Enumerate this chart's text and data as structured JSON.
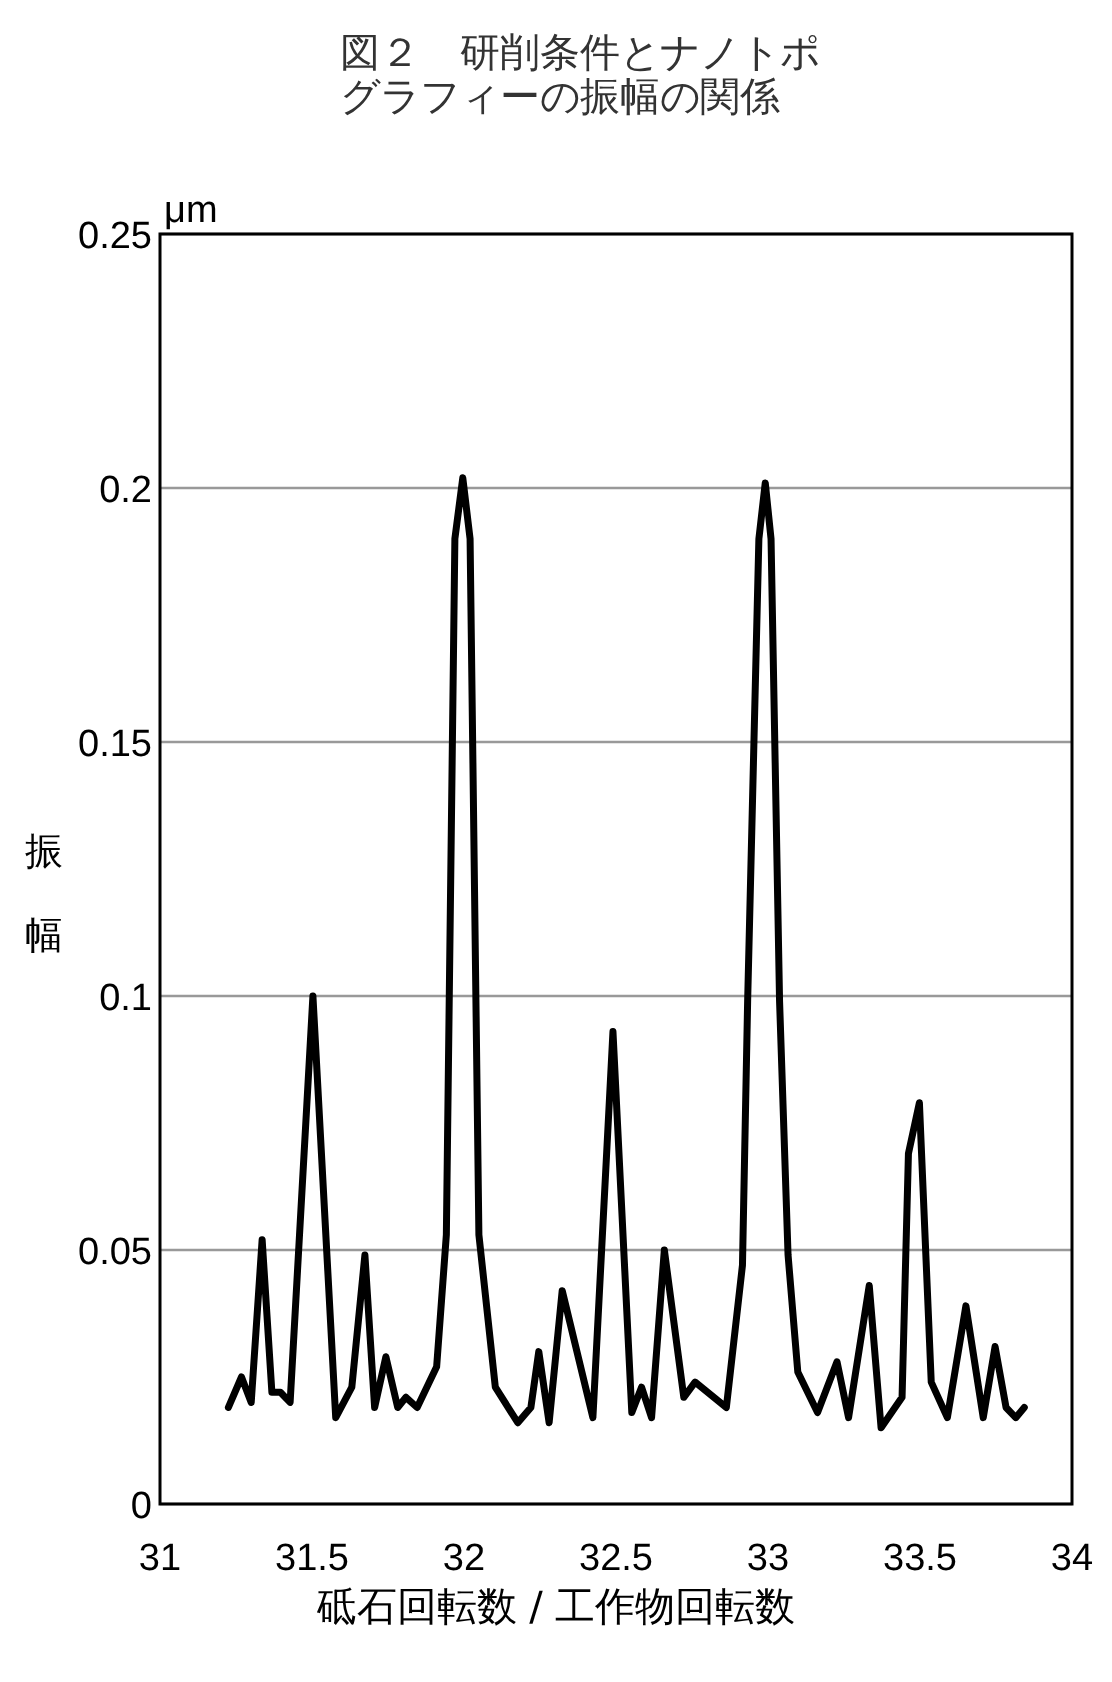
{
  "chart_data": {
    "type": "line",
    "title": "図２　研削条件とナノトポグラフィーの振幅の関係",
    "xlabel": "砥石回転数 / 工作物回転数",
    "ylabel": "振幅",
    "annotations": [
      "μm"
    ],
    "x": [
      31.225,
      31.268,
      31.3,
      31.336,
      31.368,
      31.396,
      31.428,
      31.503,
      31.578,
      31.631,
      31.674,
      31.706,
      31.743,
      31.782,
      31.809,
      31.846,
      31.91,
      31.942,
      31.97,
      31.996,
      32.02,
      32.049,
      32.103,
      32.177,
      32.22,
      32.246,
      32.28,
      32.323,
      32.424,
      32.49,
      32.552,
      32.584,
      32.617,
      32.659,
      32.723,
      32.76,
      32.863,
      32.916,
      32.933,
      32.97,
      32.991,
      33.01,
      33.038,
      33.066,
      33.098,
      33.163,
      33.227,
      33.265,
      33.333,
      33.372,
      33.441,
      33.462,
      33.498,
      33.537,
      33.59,
      33.651,
      33.708,
      33.747,
      33.783,
      33.815,
      33.843
    ],
    "series": [
      {
        "color": "#000000",
        "values": [
          0.019,
          0.025,
          0.02,
          0.052,
          0.022,
          0.022,
          0.02,
          0.1,
          0.017,
          0.023,
          0.049,
          0.019,
          0.029,
          0.019,
          0.021,
          0.019,
          0.027,
          0.053,
          0.19,
          0.202,
          0.19,
          0.053,
          0.023,
          0.016,
          0.019,
          0.03,
          0.016,
          0.042,
          0.017,
          0.093,
          0.018,
          0.023,
          0.017,
          0.05,
          0.021,
          0.024,
          0.019,
          0.047,
          0.099,
          0.19,
          0.201,
          0.19,
          0.099,
          0.049,
          0.026,
          0.018,
          0.028,
          0.017,
          0.043,
          0.015,
          0.021,
          0.069,
          0.079,
          0.024,
          0.017,
          0.039,
          0.017,
          0.031,
          0.019,
          0.017,
          0.019
        ]
      }
    ],
    "xlim": [
      31,
      34
    ],
    "xticks": [
      31,
      31.5,
      32,
      32.5,
      33,
      33.5,
      34
    ],
    "ylim": [
      0,
      0.25
    ],
    "yticks": [
      0,
      0.05,
      0.1,
      0.15,
      0.2,
      0.25
    ],
    "grid": "y",
    "marker": "none",
    "line_style": "solid"
  }
}
